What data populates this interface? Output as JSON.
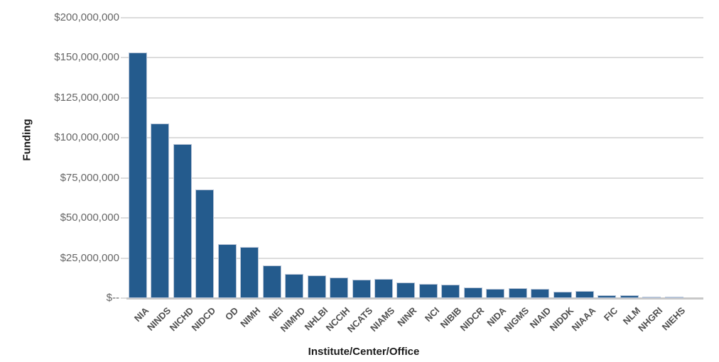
{
  "chart_data": {
    "type": "bar",
    "title": "",
    "xlabel": "Institute/Center/Office",
    "ylabel": "Funding",
    "categories": [
      "NIA",
      "NINDS",
      "NICHD",
      "NIDCD",
      "OD",
      "NIMH",
      "NEI",
      "NIMHD",
      "NHLBI",
      "NCCIH",
      "NCATS",
      "NIAMS",
      "NINR",
      "NCI",
      "NIBIB",
      "NIDCR",
      "NIDA",
      "NIGMS",
      "NIAID",
      "NIDDK",
      "NIAAA",
      "FIC",
      "NLM",
      "NHGRI",
      "NIEHS"
    ],
    "values": [
      153500000,
      109000000,
      96200000,
      68000000,
      33800000,
      32000000,
      20200000,
      15100000,
      14100000,
      12900000,
      11600000,
      11800000,
      9700000,
      8800000,
      8500000,
      6500000,
      5700000,
      6200000,
      5900000,
      4200000,
      4500000,
      1700000,
      1700000,
      1000000,
      1000000
    ],
    "y_tick_labels": [
      "$200,000,000",
      "$150,000,000",
      "$125,000,000",
      "$100,000,000",
      "$75,000,000",
      "$50,000,000",
      "$25,000,000",
      "$--"
    ],
    "y_tick_values": [
      200000000,
      150000000,
      125000000,
      100000000,
      75000000,
      50000000,
      25000000,
      0
    ],
    "grid": "horizontal gridlines on, evenly spaced",
    "legend": "none",
    "colors": {
      "bar": "#245b8d",
      "bar_edge": "#b7c4d7",
      "gridline": "#dcdcdc",
      "baseline": "#c8c8c8",
      "y_tick_label": "#666666",
      "x_tick_label": "#4f4f4f",
      "axis_title": "#1a1a1a"
    }
  }
}
